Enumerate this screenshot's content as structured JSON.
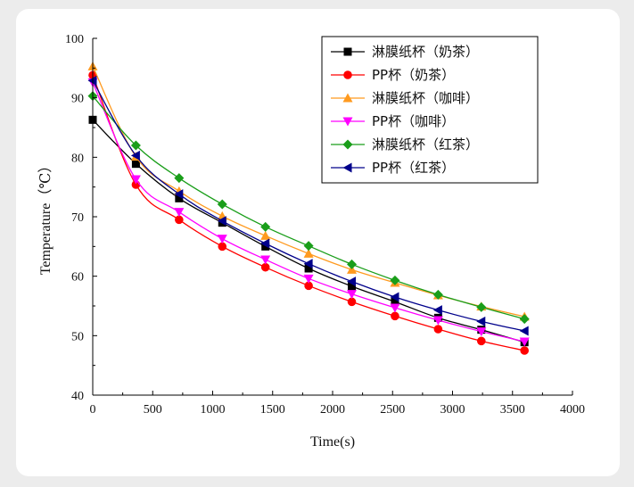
{
  "chart_data": {
    "type": "line",
    "title": "",
    "xlabel": "Time(s)",
    "ylabel": "Temperature（℃）",
    "xlim": [
      0,
      4000
    ],
    "ylim": [
      40,
      100
    ],
    "xticks": [
      0,
      500,
      1000,
      1500,
      2000,
      2500,
      3000,
      3500,
      4000
    ],
    "yticks": [
      40,
      50,
      60,
      70,
      80,
      90,
      100
    ],
    "grid": false,
    "legend_position": "top-right",
    "x": [
      0,
      360,
      720,
      1080,
      1440,
      1800,
      2160,
      2520,
      2880,
      3240,
      3600
    ],
    "series": [
      {
        "name": "淋膜纸杯（奶茶）",
        "color": "#000000",
        "marker": "square",
        "values": [
          86.3,
          78.9,
          73.1,
          69.0,
          65.0,
          61.3,
          58.3,
          55.7,
          53.0,
          51.0,
          48.9
        ]
      },
      {
        "name": "PP杯（奶茶）",
        "color": "#ff0000",
        "marker": "circle",
        "values": [
          93.8,
          75.4,
          69.5,
          65.0,
          61.5,
          58.4,
          55.7,
          53.3,
          51.1,
          49.1,
          47.5
        ]
      },
      {
        "name": "淋膜纸杯（咖啡）",
        "color": "#ff9a1f",
        "marker": "triangle-up",
        "values": [
          95.3,
          80.1,
          74.3,
          70.1,
          66.8,
          63.8,
          61.1,
          58.9,
          56.8,
          54.9,
          53.2
        ]
      },
      {
        "name": "PP杯（咖啡）",
        "color": "#ff00ff",
        "marker": "triangle-down",
        "values": [
          92.6,
          76.3,
          70.8,
          66.3,
          62.8,
          59.6,
          57.0,
          54.7,
          52.6,
          50.7,
          49.0
        ]
      },
      {
        "name": "淋膜纸杯（红茶）",
        "color": "#1a9e1a",
        "marker": "diamond",
        "values": [
          90.3,
          82.0,
          76.5,
          72.1,
          68.3,
          65.1,
          62.0,
          59.3,
          56.9,
          54.8,
          52.8
        ]
      },
      {
        "name": "PP杯（红茶）",
        "color": "#00008b",
        "marker": "triangle-left",
        "values": [
          92.9,
          80.3,
          73.8,
          69.3,
          65.5,
          62.1,
          59.1,
          56.5,
          54.3,
          52.4,
          50.8
        ]
      }
    ]
  }
}
